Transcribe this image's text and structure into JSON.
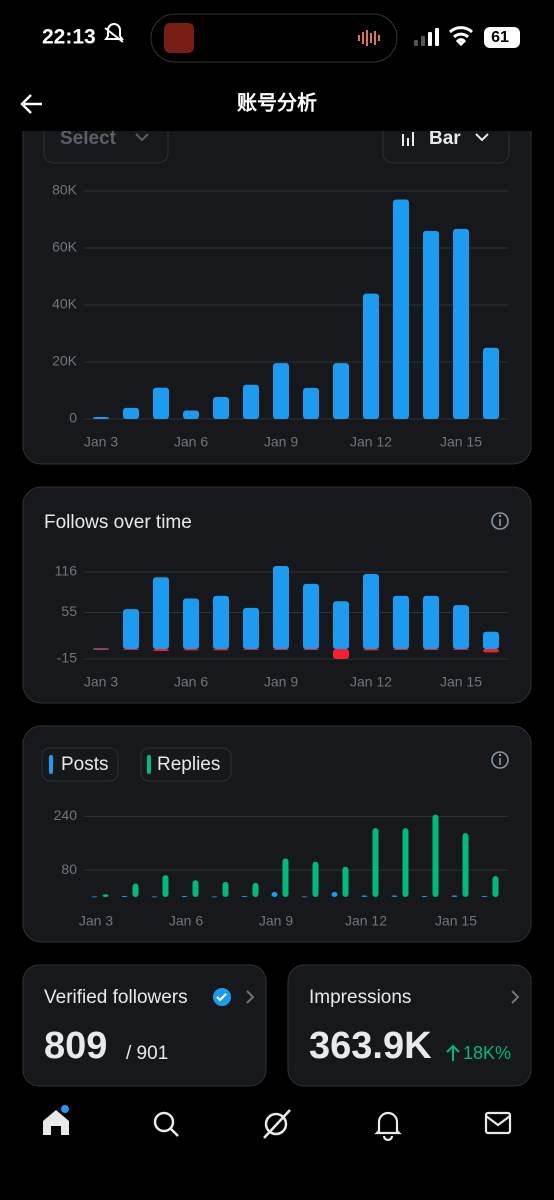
{
  "status_bar": {
    "time": "22:13",
    "battery": "61"
  },
  "header": {
    "title": "账号分析"
  },
  "controls": {
    "range": "Select",
    "chart_type": "Bar"
  },
  "chart_data": [
    {
      "type": "bar",
      "barmode": "single",
      "categories": [
        "Jan 3",
        null,
        null,
        "Jan 6",
        null,
        null,
        "Jan 9",
        null,
        null,
        "Jan 12",
        null,
        null,
        "Jan 15",
        null
      ],
      "values": [
        700,
        3900,
        11000,
        3000,
        7700,
        12000,
        19600,
        10900,
        19600,
        44000,
        77000,
        66000,
        66700,
        25000
      ],
      "color": "#1d9bf0",
      "ylim": [
        0,
        80000
      ],
      "yticks": [
        0,
        {
          "value": 20000,
          "label": "20K"
        },
        {
          "value": 40000,
          "label": "40K"
        },
        {
          "value": 60000,
          "label": "60K"
        },
        {
          "value": 80000,
          "label": "80K"
        }
      ],
      "grid": true
    },
    {
      "type": "bar",
      "barmode": "overlay",
      "title": "Follows over time",
      "categories": [
        "Jan 3",
        null,
        null,
        "Jan 6",
        null,
        null,
        "Jan 9",
        null,
        null,
        "Jan 12",
        null,
        null,
        "Jan 15",
        null
      ],
      "series": [
        {
          "color": "#1d9bf0",
          "values": [
            1,
            60,
            108,
            76,
            80,
            62,
            125,
            98,
            72,
            113,
            80,
            80,
            66,
            26
          ]
        },
        {
          "color": "#f4212e",
          "values": [
            0,
            0,
            -3,
            -2,
            -2,
            0,
            -1,
            -1,
            -15,
            -2,
            -1,
            -1,
            -1,
            -5
          ]
        }
      ],
      "ylim": [
        -15,
        131
      ],
      "yticks": [
        -15,
        55,
        116
      ],
      "grid": true
    },
    {
      "type": "bar",
      "barmode": "group",
      "categories": [
        "Jan 3",
        null,
        null,
        "Jan 6",
        null,
        null,
        "Jan 9",
        null,
        null,
        "Jan 12",
        null,
        null,
        "Jan 15",
        null
      ],
      "series": [
        {
          "name": "Posts",
          "color": "#1d9bf0",
          "values": [
            2,
            3,
            2,
            3,
            2,
            3,
            15,
            2,
            15,
            5,
            5,
            3,
            5,
            3
          ]
        },
        {
          "name": "Replies",
          "color": "#00ba7c",
          "values": [
            8,
            40,
            65,
            50,
            45,
            42,
            115,
            105,
            90,
            205,
            205,
            245,
            190,
            62
          ]
        }
      ],
      "ylim": [
        0,
        250
      ],
      "yticks": [
        80,
        240
      ],
      "grid": true
    }
  ],
  "cards": [
    {
      "title": "Verified followers",
      "value": "809",
      "total": "/ 901"
    },
    {
      "title": "Impressions",
      "value": "363.9K",
      "change": "18K%"
    }
  ]
}
